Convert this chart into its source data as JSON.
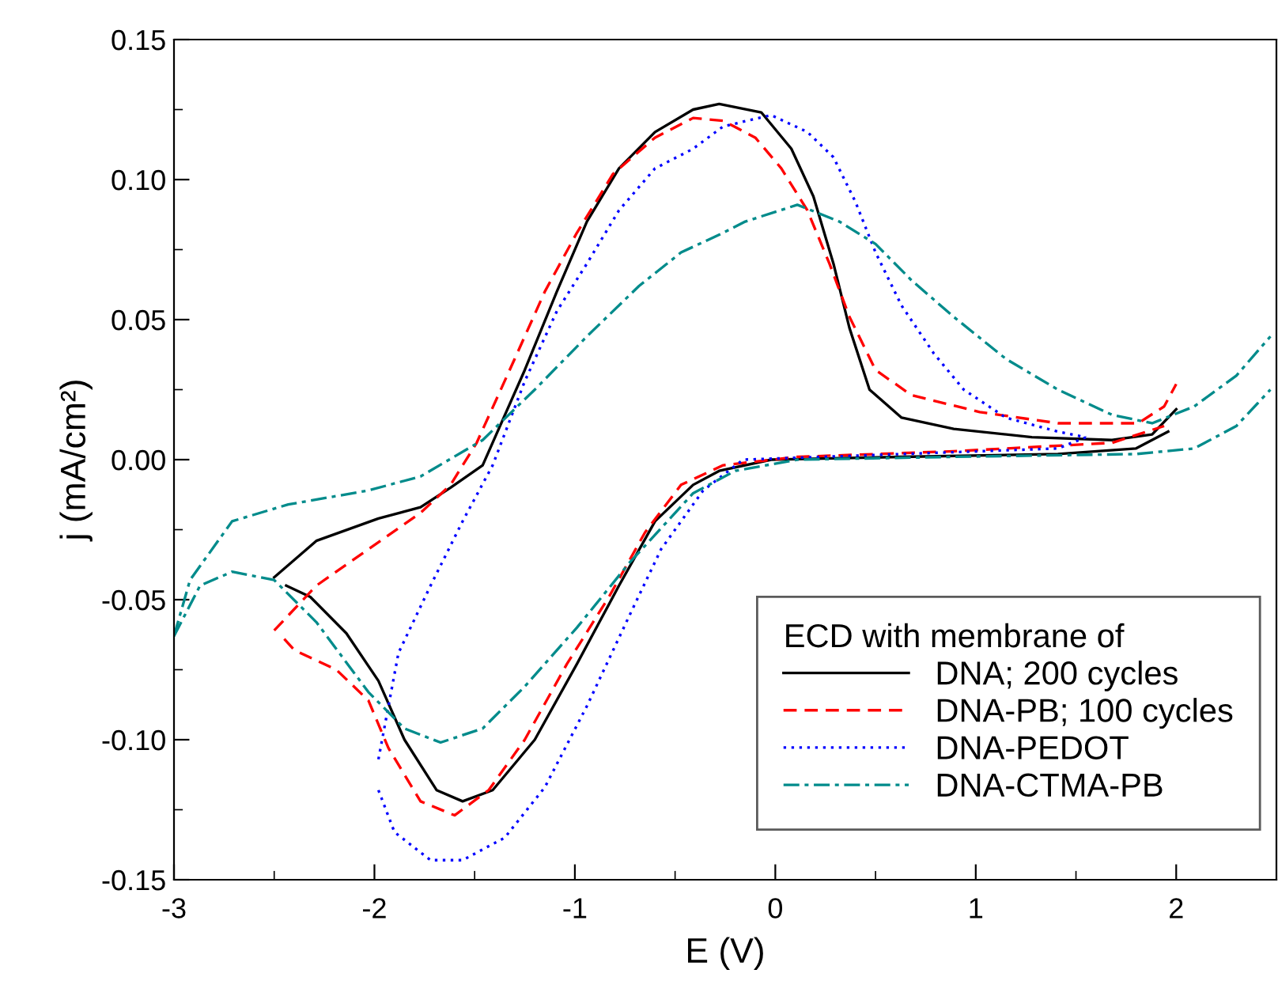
{
  "chart_data": {
    "type": "line",
    "xlabel": "E (V)",
    "ylabel": "j (mA/cm²)",
    "legend_title": "ECD with membrane of",
    "legend": "bottom right",
    "grid": false,
    "xlim": [
      -3,
      2.5
    ],
    "ylim": [
      -0.15,
      0.15
    ],
    "xticks": [
      -3,
      -2,
      -1,
      0,
      1,
      2
    ],
    "yticks": [
      {
        "value": -0.15,
        "label": "-0.15"
      },
      {
        "value": -0.1,
        "label": "-0.10"
      },
      {
        "value": -0.05,
        "label": "-0.05"
      },
      {
        "value": 0,
        "label": "0.00"
      },
      {
        "value": 0.05,
        "label": "0.05"
      },
      {
        "value": 0.1,
        "label": "0.10"
      },
      {
        "value": 0.15,
        "label": "0.15"
      }
    ],
    "series": [
      {
        "name": "DNA; 200 cycles",
        "color": "#000000",
        "line_style": "solid",
        "x": [
          -2.5,
          -2.29,
          -1.98,
          -1.77,
          -1.62,
          -1.46,
          -1.25,
          -1.09,
          -0.94,
          -0.78,
          -0.6,
          -0.41,
          -0.28,
          -0.07,
          0.08,
          0.19,
          0.29,
          0.37,
          0.47,
          0.63,
          0.89,
          1.28,
          1.68,
          1.88,
          2.0
        ],
        "values": [
          -0.042,
          -0.029,
          -0.021,
          -0.017,
          -0.01,
          -0.002,
          0.032,
          0.06,
          0.085,
          0.104,
          0.117,
          0.125,
          0.127,
          0.124,
          0.111,
          0.094,
          0.07,
          0.047,
          0.025,
          0.015,
          0.011,
          0.008,
          0.007,
          0.009,
          0.018
        ]
      },
      {
        "color": "#000000",
        "line_style": "solid",
        "x": [
          -2.44,
          -2.32,
          -2.14,
          -1.98,
          -1.85,
          -1.69,
          -1.56,
          -1.41,
          -1.2,
          -0.99,
          -0.78,
          -0.6,
          -0.41,
          -0.28,
          -0.02,
          0.63,
          1.41,
          1.8,
          1.96
        ],
        "values": [
          -0.045,
          -0.049,
          -0.062,
          -0.079,
          -0.1,
          -0.118,
          -0.122,
          -0.118,
          -0.1,
          -0.073,
          -0.045,
          -0.022,
          -0.009,
          -0.004,
          0.0,
          0.001,
          0.002,
          0.004,
          0.01
        ]
      },
      {
        "name": "DNA-PB; 100 cycles",
        "color": "#ff0000",
        "line_style": "dashed",
        "x": [
          -2.5,
          -2.29,
          -2.03,
          -1.77,
          -1.62,
          -1.49,
          -1.3,
          -1.15,
          -0.99,
          -0.81,
          -0.6,
          -0.41,
          -0.26,
          -0.1,
          0.03,
          0.16,
          0.27,
          0.37,
          0.5,
          0.68,
          1.02,
          1.41,
          1.81,
          1.94,
          2.0
        ],
        "values": [
          -0.061,
          -0.045,
          -0.032,
          -0.019,
          -0.009,
          0.006,
          0.036,
          0.06,
          0.081,
          0.102,
          0.115,
          0.122,
          0.121,
          0.115,
          0.104,
          0.089,
          0.07,
          0.051,
          0.032,
          0.023,
          0.017,
          0.013,
          0.013,
          0.019,
          0.027
        ]
      },
      {
        "color": "#ff0000",
        "line_style": "dashed",
        "x": [
          -2.45,
          -2.4,
          -2.19,
          -2.03,
          -1.93,
          -1.77,
          -1.6,
          -1.43,
          -1.25,
          -1.04,
          -0.83,
          -0.65,
          -0.47,
          -0.26,
          0.11,
          0.89,
          1.68,
          1.94
        ],
        "values": [
          -0.064,
          -0.068,
          -0.075,
          -0.086,
          -0.103,
          -0.122,
          -0.127,
          -0.118,
          -0.1,
          -0.073,
          -0.049,
          -0.026,
          -0.009,
          -0.002,
          0.001,
          0.003,
          0.006,
          0.012
        ]
      },
      {
        "name": "DNA-PEDOT",
        "color": "#0000ff",
        "line_style": "dotted",
        "x": [
          -1.98,
          -1.88,
          -1.72,
          -1.56,
          -1.41,
          -1.25,
          -1.09,
          -0.94,
          -0.78,
          -0.6,
          -0.41,
          -0.26,
          -0.02,
          0.16,
          0.29,
          0.4,
          0.5,
          0.63,
          0.79,
          0.94,
          1.15,
          1.41,
          1.55
        ],
        "values": [
          -0.107,
          -0.069,
          -0.045,
          -0.022,
          -0.002,
          0.028,
          0.053,
          0.07,
          0.089,
          0.104,
          0.111,
          0.119,
          0.123,
          0.117,
          0.108,
          0.092,
          0.074,
          0.055,
          0.038,
          0.025,
          0.015,
          0.01,
          0.008
        ]
      },
      {
        "color": "#0000ff",
        "line_style": "dotted",
        "x": [
          -1.98,
          -1.9,
          -1.72,
          -1.56,
          -1.35,
          -1.15,
          -0.94,
          -0.73,
          -0.57,
          -0.36,
          -0.16,
          0.63,
          1.41,
          1.55
        ],
        "values": [
          -0.118,
          -0.133,
          -0.143,
          -0.143,
          -0.135,
          -0.117,
          -0.088,
          -0.056,
          -0.032,
          -0.011,
          0.0,
          0.002,
          0.004,
          0.008
        ]
      },
      {
        "name": "DNA-CTMA-PB",
        "color": "#008b8b",
        "line_style": "dashdot",
        "x": [
          -3.0,
          -2.92,
          -2.71,
          -2.43,
          -2.03,
          -1.77,
          -1.46,
          -1.2,
          -0.94,
          -0.68,
          -0.47,
          -0.26,
          -0.15,
          0.11,
          0.32,
          0.5,
          0.68,
          0.89,
          1.15,
          1.41,
          1.68,
          1.88,
          2.09,
          2.3,
          2.47
        ],
        "values": [
          -0.063,
          -0.043,
          -0.022,
          -0.016,
          -0.011,
          -0.006,
          0.007,
          0.025,
          0.044,
          0.062,
          0.074,
          0.081,
          0.085,
          0.091,
          0.085,
          0.077,
          0.064,
          0.051,
          0.036,
          0.025,
          0.016,
          0.013,
          0.019,
          0.03,
          0.044
        ]
      },
      {
        "color": "#008b8b",
        "line_style": "dashdot",
        "x": [
          -3.0,
          -2.87,
          -2.71,
          -2.5,
          -2.29,
          -2.03,
          -1.85,
          -1.67,
          -1.46,
          -1.25,
          -0.99,
          -0.73,
          -0.41,
          -0.2,
          0.11,
          0.89,
          1.8,
          2.09,
          2.3,
          2.47
        ],
        "values": [
          -0.063,
          -0.045,
          -0.04,
          -0.043,
          -0.058,
          -0.083,
          -0.096,
          -0.101,
          -0.096,
          -0.081,
          -0.06,
          -0.037,
          -0.012,
          -0.004,
          0.0,
          0.001,
          0.002,
          0.004,
          0.012,
          0.025
        ]
      }
    ]
  }
}
